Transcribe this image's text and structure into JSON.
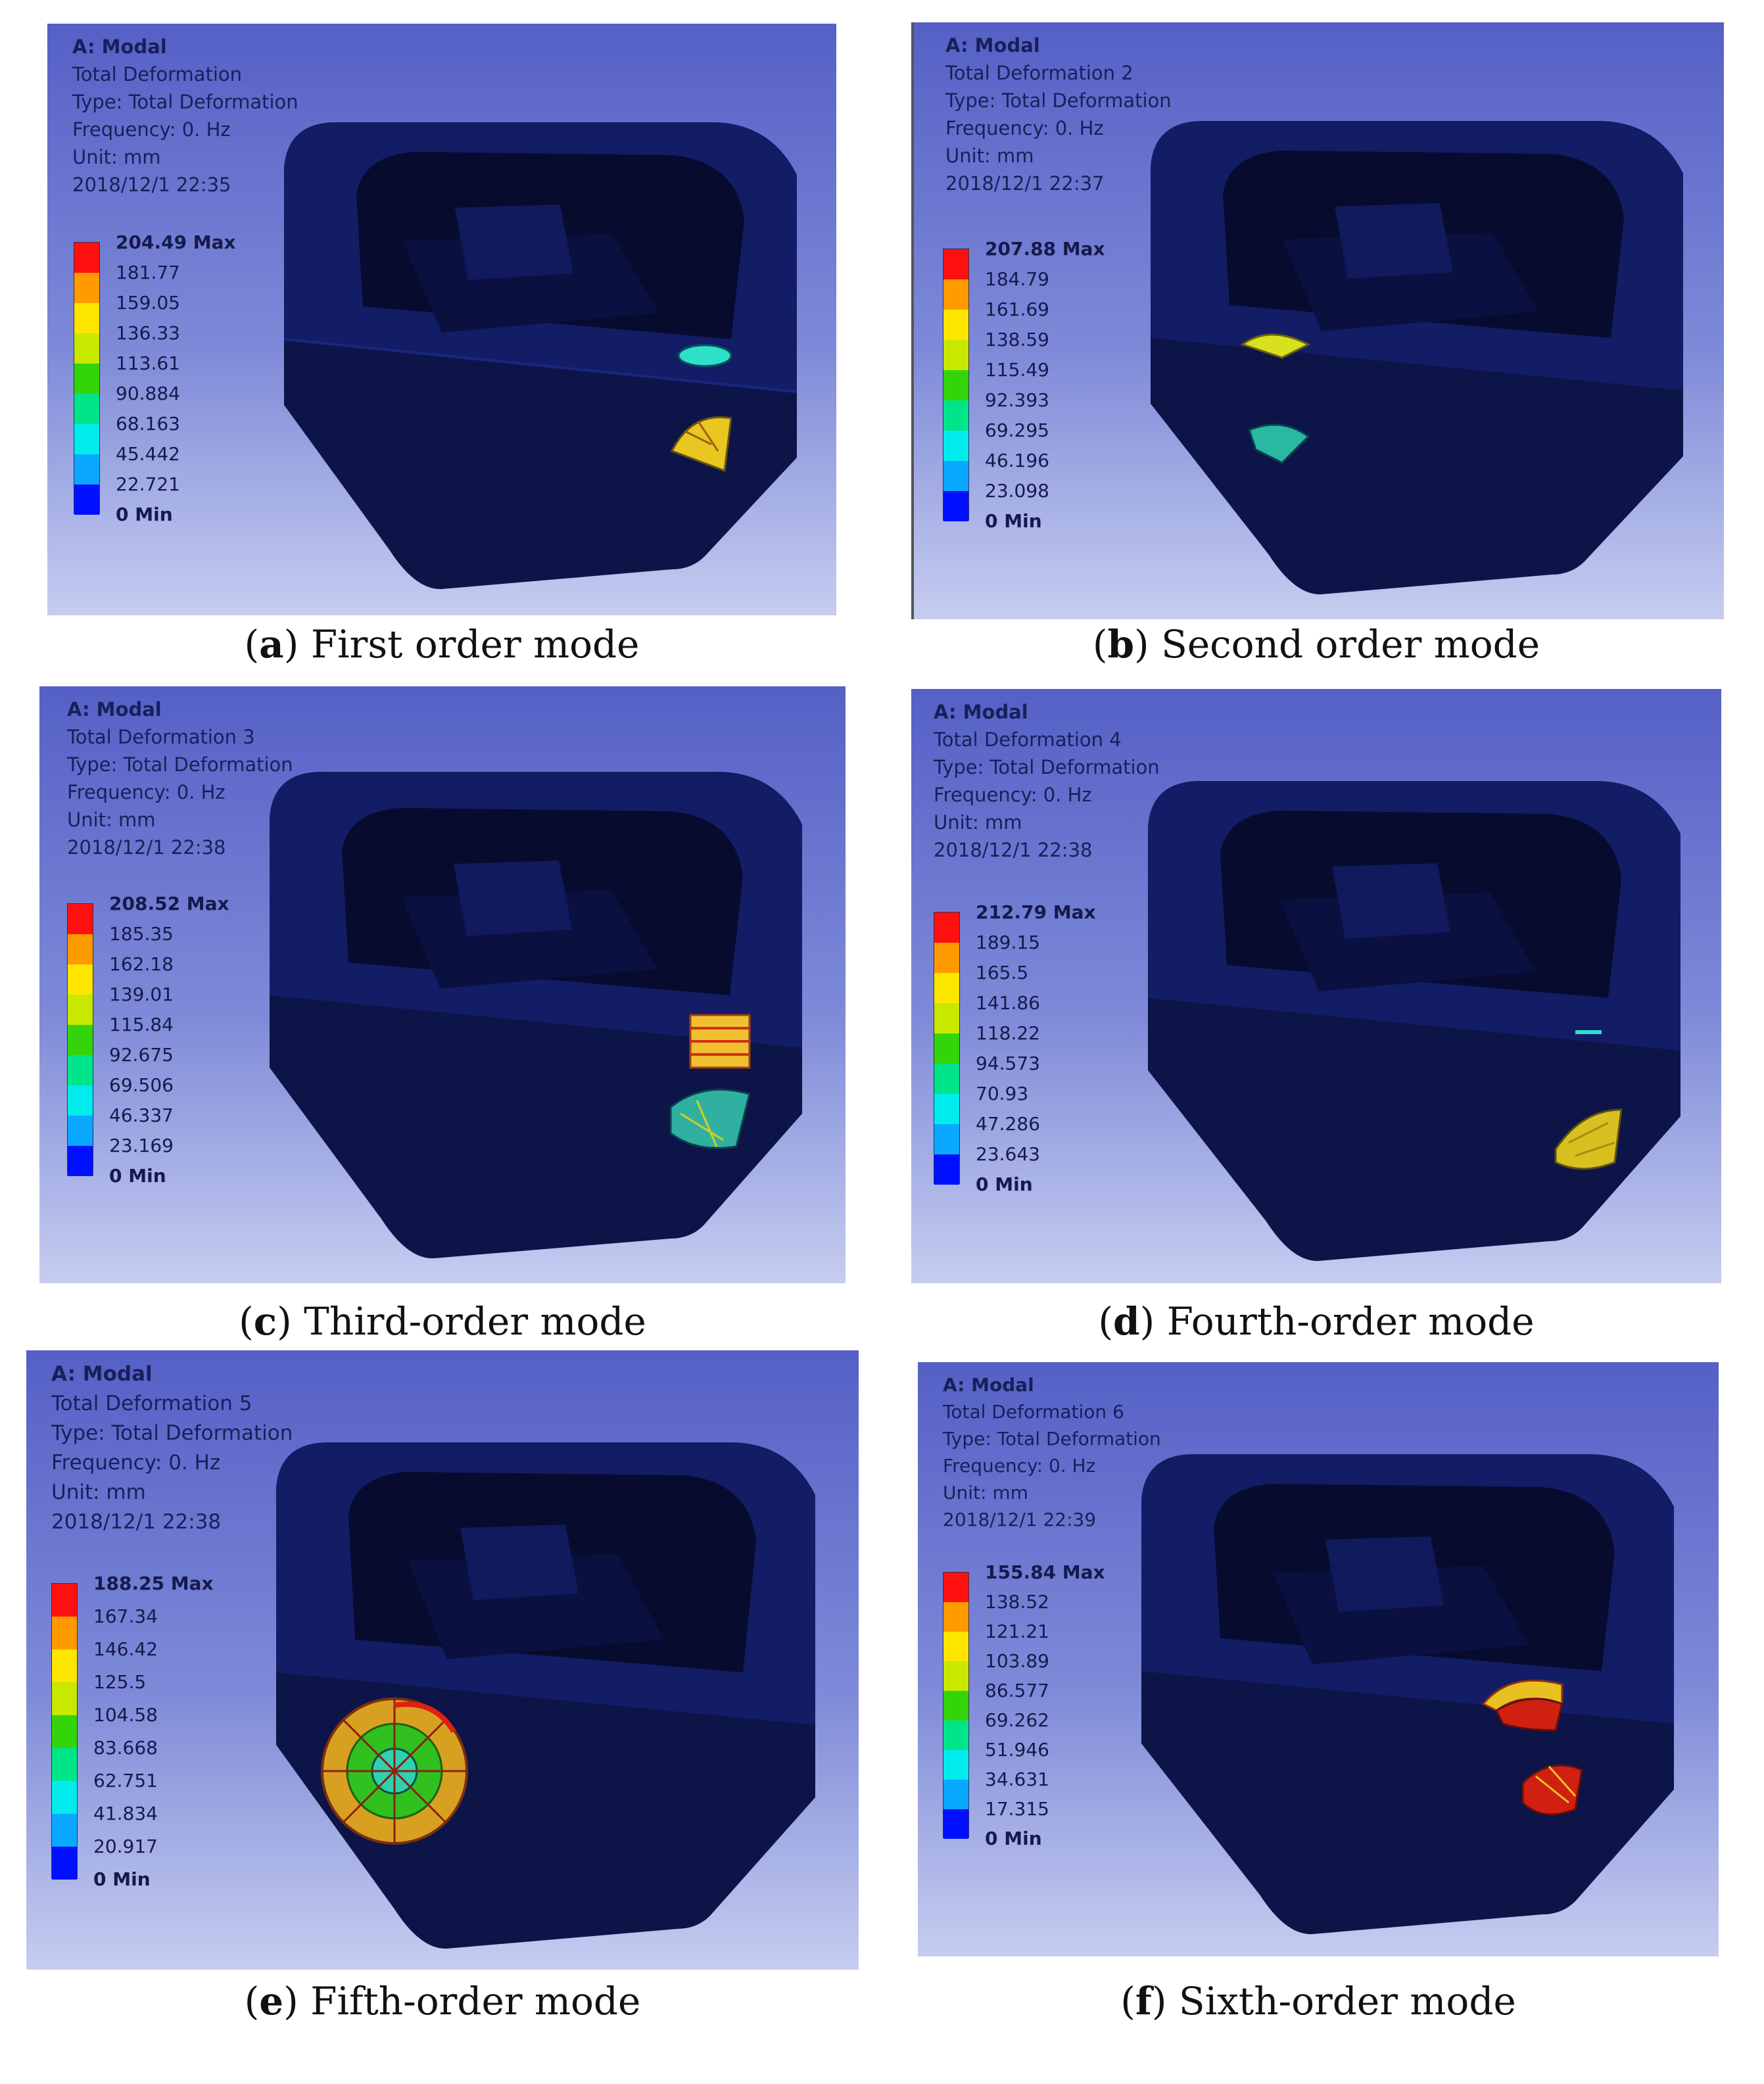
{
  "legend_colors": [
    "#ff1010",
    "#ff9a00",
    "#ffe600",
    "#c8e800",
    "#34d40a",
    "#00e48a",
    "#00ecec",
    "#0aa8ff",
    "#0010ff"
  ],
  "panels": [
    {
      "letter": "a",
      "caption": " First order mode",
      "info": [
        "A: Modal",
        "Total Deformation",
        "Type: Total Deformation",
        "Frequency: 0. Hz",
        "Unit: mm",
        "2018/12/1 22:35"
      ],
      "legend": [
        "204.49 Max",
        "181.77",
        "159.05",
        "136.33",
        "113.61",
        "90.884",
        "68.163",
        "45.442",
        "22.721",
        "0 Min"
      ]
    },
    {
      "letter": "b",
      "caption": " Second order mode",
      "info": [
        "A: Modal",
        "Total Deformation 2",
        "Type: Total Deformation",
        "Frequency: 0. Hz",
        "Unit: mm",
        "2018/12/1 22:37"
      ],
      "legend": [
        "207.88 Max",
        "184.79",
        "161.69",
        "138.59",
        "115.49",
        "92.393",
        "69.295",
        "46.196",
        "23.098",
        "0 Min"
      ]
    },
    {
      "letter": "c",
      "caption": " Third-order mode",
      "info": [
        "A: Modal",
        "Total Deformation 3",
        "Type: Total Deformation",
        "Frequency: 0. Hz",
        "Unit: mm",
        "2018/12/1 22:38"
      ],
      "legend": [
        "208.52 Max",
        "185.35",
        "162.18",
        "139.01",
        "115.84",
        "92.675",
        "69.506",
        "46.337",
        "23.169",
        "0 Min"
      ]
    },
    {
      "letter": "d",
      "caption": " Fourth-order mode",
      "info": [
        "A: Modal",
        "Total Deformation 4",
        "Type: Total Deformation",
        "Frequency: 0. Hz",
        "Unit: mm",
        "2018/12/1 22:38"
      ],
      "legend": [
        "212.79 Max",
        "189.15",
        "165.5",
        "141.86",
        "118.22",
        "94.573",
        "70.93",
        "47.286",
        "23.643",
        "0 Min"
      ]
    },
    {
      "letter": "e",
      "caption": " Fifth-order mode",
      "info": [
        "A: Modal",
        "Total Deformation 5",
        "Type: Total Deformation",
        "Frequency: 0. Hz",
        "Unit: mm",
        "2018/12/1 22:38"
      ],
      "legend": [
        "188.25 Max",
        "167.34",
        "146.42",
        "125.5",
        "104.58",
        "83.668",
        "62.751",
        "41.834",
        "20.917",
        "0 Min"
      ]
    },
    {
      "letter": "f",
      "caption": " Sixth-order mode",
      "info": [
        "A: Modal",
        "Total Deformation 6",
        "Type: Total Deformation",
        "Frequency: 0. Hz",
        "Unit: mm",
        "2018/12/1 22:39"
      ],
      "legend": [
        "155.84 Max",
        "138.52",
        "121.21",
        "103.89",
        "86.577",
        "69.262",
        "51.946",
        "34.631",
        "17.315",
        "0 Min"
      ]
    }
  ]
}
